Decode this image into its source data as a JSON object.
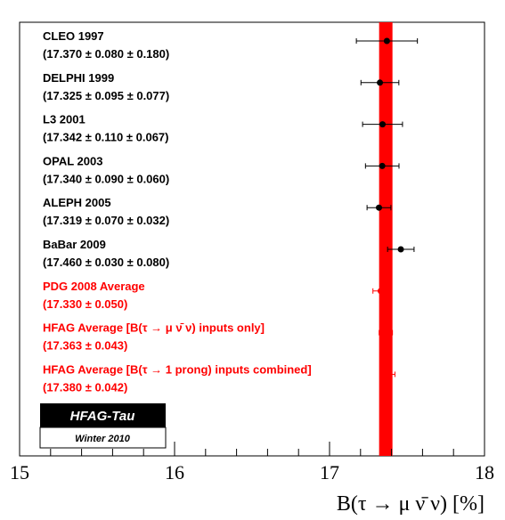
{
  "chart_data": {
    "type": "scatter",
    "xlabel": "B(τ → μ ν̄ ν) [%]",
    "xlim": [
      15,
      18
    ],
    "x_ticks": [
      "15",
      "16",
      "17",
      "18"
    ],
    "band": {
      "center": 17.363,
      "half_width": 0.043,
      "color": "#ff0000"
    },
    "measurements": [
      {
        "name": "CLEO 1997",
        "value_text": "(17.370 ±  0.080 ±  0.180)",
        "value": 17.37,
        "stat": 0.08,
        "syst": 0.18,
        "color": "#000000"
      },
      {
        "name": "DELPHI 1999",
        "value_text": "(17.325 ±  0.095 ±  0.077)",
        "value": 17.325,
        "stat": 0.095,
        "syst": 0.077,
        "color": "#000000"
      },
      {
        "name": "L3 2001",
        "value_text": "(17.342 ±  0.110 ±  0.067)",
        "value": 17.342,
        "stat": 0.11,
        "syst": 0.067,
        "color": "#000000"
      },
      {
        "name": "OPAL 2003",
        "value_text": "(17.340 ±  0.090 ±  0.060)",
        "value": 17.34,
        "stat": 0.09,
        "syst": 0.06,
        "color": "#000000"
      },
      {
        "name": "ALEPH 2005",
        "value_text": "(17.319 ±  0.070 ±  0.032)",
        "value": 17.319,
        "stat": 0.07,
        "syst": 0.032,
        "color": "#000000"
      },
      {
        "name": "BaBar 2009",
        "value_text": "(17.460 ±  0.030 ±  0.080)",
        "value": 17.46,
        "stat": 0.03,
        "syst": 0.08,
        "color": "#000000"
      },
      {
        "name": "PDG 2008 Average",
        "value_text": "(17.330 ±  0.050)",
        "value": 17.33,
        "stat": 0.05,
        "syst": 0,
        "color": "#ff0000"
      },
      {
        "name": "HFAG Average [B(τ → μ ν̄ ν) inputs only]",
        "value_text": "(17.363 ±  0.043)",
        "value": 17.363,
        "stat": 0.043,
        "syst": 0,
        "color": "#ff0000"
      },
      {
        "name": "HFAG Average [B(τ → 1 prong) inputs combined]",
        "value_text": "(17.380 ±  0.042)",
        "value": 17.38,
        "stat": 0.042,
        "syst": 0,
        "color": "#ff0000"
      }
    ]
  },
  "logo": {
    "title": "HFAG-Tau",
    "subtitle": "Winter 2010"
  },
  "colors": {
    "axis": "#000000",
    "highlight": "#ff0000"
  }
}
